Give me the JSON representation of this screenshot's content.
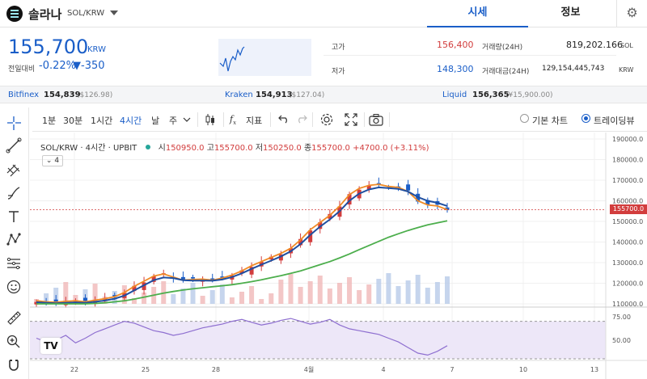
{
  "header": {
    "coin_name": "솔라나",
    "pair": "SOL/KRW",
    "tabs": [
      {
        "label": "시세",
        "active": true
      },
      {
        "label": "정보",
        "active": false
      }
    ]
  },
  "quote": {
    "price": "155,700",
    "unit": "KRW",
    "compare_label": "전일대비",
    "change_pct": "-0.22%",
    "change_abs": "▼-350",
    "high_label": "고가",
    "high": "156,400",
    "low_label": "저가",
    "low": "148,300",
    "volume_label": "거래량(24H)",
    "volume": "819,202.166",
    "volume_unit": "SOL",
    "amount_label": "거래대금(24H)",
    "amount": "129,154,445,743",
    "amount_unit": "KRW"
  },
  "exchanges": [
    {
      "name": "Bitfinex",
      "price": "154,839",
      "sub": "($126.98)"
    },
    {
      "name": "Kraken",
      "price": "154,913",
      "sub": "($127.04)"
    },
    {
      "name": "Liquid",
      "price": "156,365",
      "sub": "(¥15,900.00)"
    }
  ],
  "toolbar": {
    "intervals": [
      "1분",
      "30분",
      "1시간",
      "4시간",
      "날",
      "주"
    ],
    "active_interval": "4시간",
    "indicators_label": "지표",
    "basic_chart_label": "기본 차트",
    "tradingview_label": "트레이딩뷰"
  },
  "legend": {
    "symbol": "SOL/KRW · 4시간 · UPBIT",
    "o_label": "시",
    "o": "150950.0",
    "h_label": "고",
    "h": "155700.0",
    "l_label": "저",
    "l": "150250.0",
    "c_label": "종",
    "c": "155700.0",
    "change": "+4700.0 (+3.11%)",
    "collapse": "4",
    "logo": "TV"
  },
  "price_axis": {
    "ticks": [
      "190000.0",
      "180000.0",
      "170000.0",
      "160000.0",
      "150000.0",
      "140000.0",
      "130000.0",
      "120000.0",
      "110000.0"
    ],
    "current": "155700.0"
  },
  "rsi_axis": {
    "ticks": [
      "75.00",
      "50.00"
    ]
  },
  "time_axis": {
    "ticks": [
      "22",
      "25",
      "28",
      "4월",
      "4",
      "7",
      "10",
      "13"
    ]
  },
  "colors": {
    "up": "#d23d3d",
    "down": "#1a5ec8",
    "ma_fast": "#f08a24",
    "ma_mid": "#1f4fa0",
    "ma_slow": "#4cae4c",
    "rsi": "#8e6fd0"
  },
  "chart_data": {
    "type": "line",
    "series": [
      {
        "values": [
          111500,
          111000,
          110800,
          111200,
          111500,
          111000,
          111800,
          112500,
          113500,
          115500,
          118500,
          121000,
          123500,
          124500,
          123000,
          121500,
          121800,
          122000,
          121500,
          122500,
          124000,
          126000,
          128500,
          130500,
          132500,
          134500,
          137000,
          141000,
          146000,
          149500,
          153000,
          157500,
          163000,
          166000,
          167500,
          168000,
          167000,
          166500,
          164500,
          160000,
          158000,
          157500,
          155700
        ]
      },
      {
        "values": [
          110800,
          110500,
          110300,
          110500,
          110700,
          110500,
          111000,
          111600,
          112500,
          114000,
          116500,
          119000,
          121500,
          122800,
          122500,
          121500,
          121300,
          121300,
          121200,
          121800,
          123000,
          124800,
          127000,
          129000,
          131000,
          133000,
          135500,
          139000,
          143500,
          147500,
          151000,
          155000,
          160000,
          163500,
          165500,
          166500,
          166200,
          165800,
          164500,
          161800,
          160000,
          159000,
          157500
        ]
      },
      {
        "values": [
          110000,
          110000,
          110000,
          110000,
          110000,
          110000,
          110200,
          110500,
          111000,
          111500,
          112300,
          113200,
          114200,
          115200,
          116000,
          116700,
          117300,
          117800,
          118300,
          118800,
          119300,
          120000,
          120800,
          121700,
          122700,
          123700,
          124800,
          126000,
          127500,
          129000,
          130500,
          132300,
          134200,
          136300,
          138300,
          140300,
          142300,
          144000,
          145600,
          147000,
          148300,
          149300,
          150300
        ]
      }
    ]
  }
}
